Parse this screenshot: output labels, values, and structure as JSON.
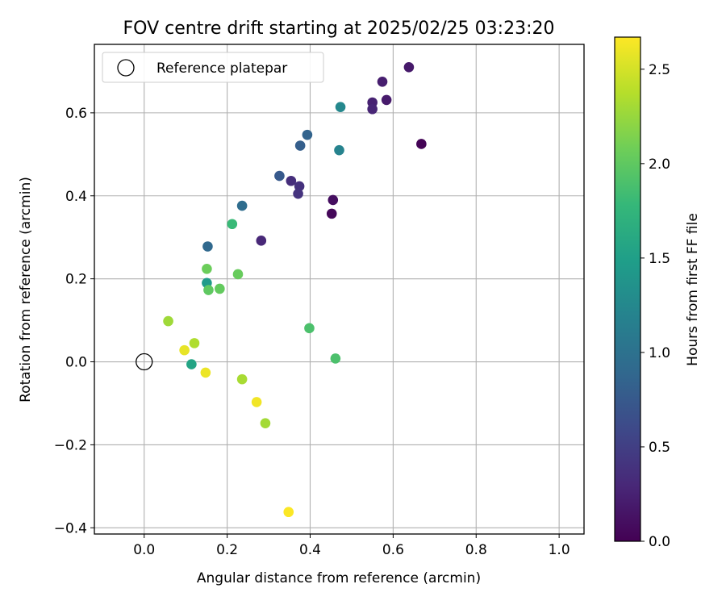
{
  "chart_data": {
    "type": "scatter",
    "title": "FOV centre drift starting at 2025/02/25 03:23:20",
    "xlabel": "Angular distance from reference (arcmin)",
    "ylabel": "Rotation from reference (arcmin)",
    "xlim": [
      -0.12,
      1.06
    ],
    "ylim": [
      -0.415,
      0.765
    ],
    "xticks": [
      0.0,
      0.2,
      0.4,
      0.6,
      0.8,
      1.0
    ],
    "xtick_labels": [
      "0.0",
      "0.2",
      "0.4",
      "0.6",
      "0.8",
      "1.0"
    ],
    "yticks": [
      -0.4,
      -0.2,
      0.0,
      0.2,
      0.4,
      0.6
    ],
    "ytick_labels": [
      "−0.4",
      "−0.2",
      "0.0",
      "0.2",
      "0.4",
      "0.6"
    ],
    "grid": true,
    "legend": {
      "position": "top-left",
      "entries": [
        "Reference platepar"
      ]
    },
    "reference_point": {
      "x": 0.0,
      "y": 0.0
    },
    "colorbar": {
      "label": "Hours from first FF file",
      "range": [
        0.0,
        2.67
      ],
      "ticks": [
        0.0,
        0.5,
        1.0,
        1.5,
        2.0,
        2.5
      ],
      "tick_labels": [
        "0.0",
        "0.5",
        "1.0",
        "1.5",
        "2.0",
        "2.5"
      ],
      "colormap": "viridis",
      "stops": [
        "#440154",
        "#482878",
        "#3e4989",
        "#31688e",
        "#26828e",
        "#1f9e89",
        "#35b779",
        "#6ece58",
        "#b5de2b",
        "#fde725"
      ]
    },
    "points": [
      {
        "x": 0.668,
        "y": 0.525,
        "t": 0.02
      },
      {
        "x": 0.452,
        "y": 0.357,
        "t": 0.05
      },
      {
        "x": 0.455,
        "y": 0.39,
        "t": 0.1
      },
      {
        "x": 0.638,
        "y": 0.71,
        "t": 0.18
      },
      {
        "x": 0.584,
        "y": 0.631,
        "t": 0.2
      },
      {
        "x": 0.574,
        "y": 0.675,
        "t": 0.22
      },
      {
        "x": 0.55,
        "y": 0.625,
        "t": 0.25
      },
      {
        "x": 0.55,
        "y": 0.609,
        "t": 0.28
      },
      {
        "x": 0.282,
        "y": 0.292,
        "t": 0.3
      },
      {
        "x": 0.354,
        "y": 0.436,
        "t": 0.35
      },
      {
        "x": 0.374,
        "y": 0.423,
        "t": 0.38
      },
      {
        "x": 0.371,
        "y": 0.405,
        "t": 0.4
      },
      {
        "x": 0.326,
        "y": 0.448,
        "t": 0.75
      },
      {
        "x": 0.376,
        "y": 0.521,
        "t": 0.8
      },
      {
        "x": 0.393,
        "y": 0.547,
        "t": 0.85
      },
      {
        "x": 0.153,
        "y": 0.278,
        "t": 0.9
      },
      {
        "x": 0.236,
        "y": 0.376,
        "t": 0.95
      },
      {
        "x": 0.47,
        "y": 0.51,
        "t": 1.2
      },
      {
        "x": 0.473,
        "y": 0.614,
        "t": 1.25
      },
      {
        "x": 0.151,
        "y": 0.19,
        "t": 1.45
      },
      {
        "x": 0.114,
        "y": -0.006,
        "t": 1.55
      },
      {
        "x": 0.212,
        "y": 0.332,
        "t": 1.8
      },
      {
        "x": 0.461,
        "y": 0.008,
        "t": 1.9
      },
      {
        "x": 0.398,
        "y": 0.081,
        "t": 1.9
      },
      {
        "x": 0.155,
        "y": 0.173,
        "t": 2.0
      },
      {
        "x": 0.182,
        "y": 0.176,
        "t": 2.02
      },
      {
        "x": 0.226,
        "y": 0.211,
        "t": 2.04
      },
      {
        "x": 0.151,
        "y": 0.224,
        "t": 2.06
      },
      {
        "x": 0.058,
        "y": 0.098,
        "t": 2.28
      },
      {
        "x": 0.292,
        "y": -0.148,
        "t": 2.3
      },
      {
        "x": 0.236,
        "y": -0.042,
        "t": 2.32
      },
      {
        "x": 0.121,
        "y": 0.045,
        "t": 2.35
      },
      {
        "x": 0.097,
        "y": 0.028,
        "t": 2.58
      },
      {
        "x": 0.148,
        "y": -0.026,
        "t": 2.6
      },
      {
        "x": 0.271,
        "y": -0.097,
        "t": 2.62
      },
      {
        "x": 0.348,
        "y": -0.362,
        "t": 2.66
      }
    ]
  }
}
